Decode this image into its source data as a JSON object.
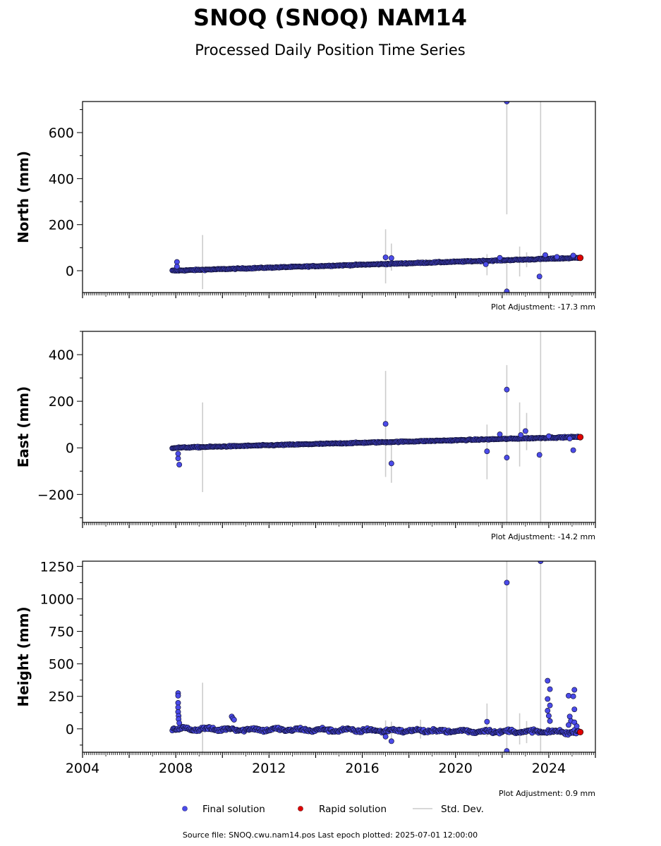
{
  "header": {
    "title": "SNOQ (SNOQ) NAM14",
    "subtitle": "Processed Daily Position Time Series"
  },
  "legend": {
    "final_label": "Final solution",
    "rapid_label": "Rapid solution",
    "stddev_label": "Std. Dev."
  },
  "footer": {
    "source": "Source file: SNOQ.cwu.nam14.pos  Last epoch plotted: 2025-07-01 12:00:00"
  },
  "colors": {
    "final": "#4b4bea",
    "rapid": "#e00000",
    "stddev": "#cccccc"
  },
  "chart_data": [
    {
      "type": "scatter",
      "name": "north",
      "ylabel": "North (mm)",
      "adjustment": "Plot Adjustment: -17.3 mm",
      "xlim": [
        2004,
        2026
      ],
      "ylim": [
        -95,
        735
      ],
      "yticks": [
        0,
        200,
        400,
        600
      ],
      "trend": {
        "x": [
          2007.85,
          2025.35
        ],
        "y": [
          0,
          56
        ]
      },
      "trend_spread": 4,
      "outliers": [
        {
          "x": 2008.05,
          "y": 38
        },
        {
          "x": 2008.05,
          "y": 18
        },
        {
          "x": 2017.0,
          "y": 58
        },
        {
          "x": 2017.25,
          "y": 55
        },
        {
          "x": 2021.3,
          "y": 28
        },
        {
          "x": 2021.9,
          "y": 56
        },
        {
          "x": 2022.2,
          "y": 735
        },
        {
          "x": 2022.2,
          "y": -90
        },
        {
          "x": 2023.6,
          "y": -25
        },
        {
          "x": 2023.85,
          "y": 68
        },
        {
          "x": 2024.35,
          "y": 60
        },
        {
          "x": 2025.05,
          "y": 66
        }
      ],
      "errorbars": [
        {
          "x": 2009.15,
          "y_low": -80,
          "y_high": 155
        },
        {
          "x": 2017.0,
          "y_low": -55,
          "y_high": 180
        },
        {
          "x": 2017.25,
          "y_low": 0,
          "y_high": 118
        },
        {
          "x": 2021.35,
          "y_low": -20,
          "y_high": 72
        },
        {
          "x": 2022.2,
          "y_low": 245,
          "y_high": 735
        },
        {
          "x": 2022.2,
          "y_low": -95,
          "y_high": 40
        },
        {
          "x": 2022.75,
          "y_low": -25,
          "y_high": 105
        },
        {
          "x": 2023.05,
          "y_low": 15,
          "y_high": 80
        },
        {
          "x": 2023.65,
          "y_low": -95,
          "y_high": 735
        }
      ],
      "rapid": [
        {
          "x": 2025.35,
          "y": 56
        }
      ]
    },
    {
      "type": "scatter",
      "name": "east",
      "ylabel": "East (mm)",
      "adjustment": "Plot Adjustment: -14.2 mm",
      "xlim": [
        2004,
        2026
      ],
      "ylim": [
        -320,
        500
      ],
      "yticks": [
        -200,
        0,
        200,
        400
      ],
      "trend": {
        "x": [
          2007.85,
          2025.35
        ],
        "y": [
          0,
          47
        ]
      },
      "trend_spread": 4,
      "outliers": [
        {
          "x": 2008.1,
          "y": -45
        },
        {
          "x": 2008.15,
          "y": -72
        },
        {
          "x": 2008.1,
          "y": -25
        },
        {
          "x": 2017.0,
          "y": 103
        },
        {
          "x": 2017.25,
          "y": -67
        },
        {
          "x": 2021.35,
          "y": -15
        },
        {
          "x": 2021.9,
          "y": 58
        },
        {
          "x": 2022.2,
          "y": 250
        },
        {
          "x": 2022.2,
          "y": -42
        },
        {
          "x": 2022.8,
          "y": 55
        },
        {
          "x": 2023.0,
          "y": 72
        },
        {
          "x": 2023.6,
          "y": -30
        },
        {
          "x": 2024.0,
          "y": 50
        },
        {
          "x": 2025.05,
          "y": -10
        },
        {
          "x": 2024.9,
          "y": 40
        }
      ],
      "errorbars": [
        {
          "x": 2009.15,
          "y_low": -190,
          "y_high": 195
        },
        {
          "x": 2017.0,
          "y_low": -125,
          "y_high": 330
        },
        {
          "x": 2017.25,
          "y_low": -150,
          "y_high": 15
        },
        {
          "x": 2021.35,
          "y_low": -135,
          "y_high": 100
        },
        {
          "x": 2022.2,
          "y_low": -320,
          "y_high": 355
        },
        {
          "x": 2022.75,
          "y_low": -80,
          "y_high": 195
        },
        {
          "x": 2023.05,
          "y_low": -10,
          "y_high": 150
        },
        {
          "x": 2023.65,
          "y_low": -320,
          "y_high": 500
        }
      ],
      "rapid": [
        {
          "x": 2025.35,
          "y": 46
        }
      ]
    },
    {
      "type": "scatter",
      "name": "height",
      "ylabel": "Height (mm)",
      "adjustment": "Plot Adjustment: 0.9 mm",
      "xlim": [
        2004,
        2026
      ],
      "ylim": [
        -180,
        1290
      ],
      "yticks": [
        0,
        250,
        500,
        750,
        1000,
        1250
      ],
      "xticks": [
        2004,
        2008,
        2012,
        2016,
        2020,
        2024
      ],
      "trend": {
        "x": [
          2007.85,
          2025.35
        ],
        "y": [
          0,
          -25
        ]
      },
      "trend_spread": 22,
      "outliers": [
        {
          "x": 2008.1,
          "y": 275
        },
        {
          "x": 2008.1,
          "y": 255
        },
        {
          "x": 2008.1,
          "y": 200
        },
        {
          "x": 2008.1,
          "y": 165
        },
        {
          "x": 2008.1,
          "y": 130
        },
        {
          "x": 2008.12,
          "y": 100
        },
        {
          "x": 2008.12,
          "y": 75
        },
        {
          "x": 2008.15,
          "y": 45
        },
        {
          "x": 2010.4,
          "y": 95
        },
        {
          "x": 2010.45,
          "y": 80
        },
        {
          "x": 2010.5,
          "y": 70
        },
        {
          "x": 2017.0,
          "y": -60
        },
        {
          "x": 2017.25,
          "y": -95
        },
        {
          "x": 2021.35,
          "y": 55
        },
        {
          "x": 2022.2,
          "y": 1125
        },
        {
          "x": 2022.2,
          "y": -170
        },
        {
          "x": 2023.65,
          "y": 1290
        },
        {
          "x": 2023.95,
          "y": 370
        },
        {
          "x": 2024.05,
          "y": 305
        },
        {
          "x": 2023.95,
          "y": 230
        },
        {
          "x": 2024.05,
          "y": 180
        },
        {
          "x": 2023.95,
          "y": 140
        },
        {
          "x": 2024.0,
          "y": 100
        },
        {
          "x": 2024.05,
          "y": 60
        },
        {
          "x": 2024.85,
          "y": 255
        },
        {
          "x": 2025.05,
          "y": 250
        },
        {
          "x": 2025.1,
          "y": 300
        },
        {
          "x": 2025.1,
          "y": 150
        },
        {
          "x": 2024.9,
          "y": 95
        },
        {
          "x": 2024.95,
          "y": 60
        },
        {
          "x": 2025.1,
          "y": 50
        },
        {
          "x": 2024.85,
          "y": 30
        },
        {
          "x": 2025.2,
          "y": 20
        }
      ],
      "errorbars": [
        {
          "x": 2009.15,
          "y_low": -180,
          "y_high": 355
        },
        {
          "x": 2017.0,
          "y_low": -45,
          "y_high": 65
        },
        {
          "x": 2017.25,
          "y_low": -110,
          "y_high": 55
        },
        {
          "x": 2018.5,
          "y_low": -75,
          "y_high": 70
        },
        {
          "x": 2021.35,
          "y_low": -60,
          "y_high": 195
        },
        {
          "x": 2022.2,
          "y_low": -180,
          "y_high": 1290
        },
        {
          "x": 2022.75,
          "y_low": -120,
          "y_high": 120
        },
        {
          "x": 2023.05,
          "y_low": -110,
          "y_high": 60
        },
        {
          "x": 2023.65,
          "y_low": -180,
          "y_high": 1290
        }
      ],
      "rapid": [
        {
          "x": 2025.35,
          "y": -25
        }
      ]
    }
  ]
}
